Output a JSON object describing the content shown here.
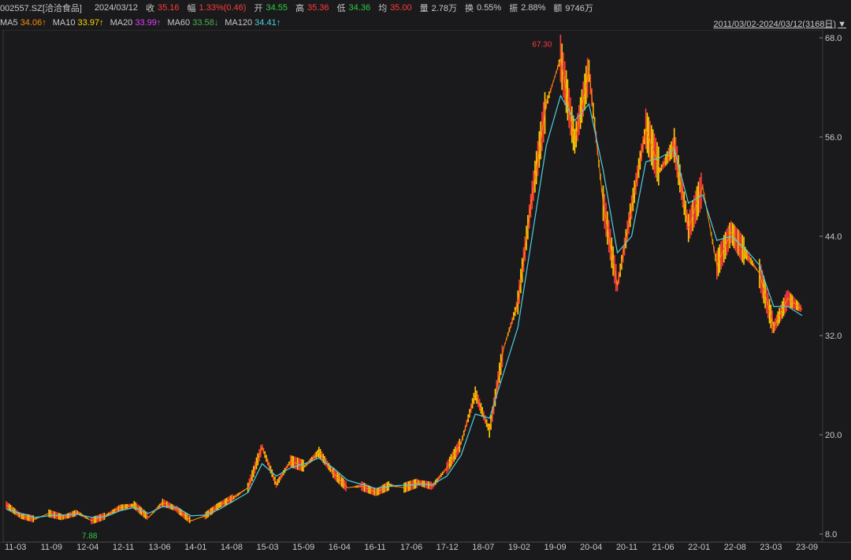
{
  "header": {
    "code": "002557.SZ[洽洽食品]",
    "date": "2024/03/12",
    "close_label": "收",
    "close_value": "35.16",
    "change_label": "幅",
    "change_value": "1.33%(0.46)",
    "open_label": "开",
    "open_value": "34.55",
    "high_label": "高",
    "high_value": "35.36",
    "low_label": "低",
    "low_value": "34.36",
    "avg_label": "均",
    "avg_value": "35.00",
    "vol_label": "量",
    "vol_value": "2.78万",
    "turnover_label": "换",
    "turnover_value": "0.55%",
    "amp_label": "振",
    "amp_value": "2.88%",
    "amount_label": "额",
    "amount_value": "9746万"
  },
  "ma_bar": [
    {
      "label": "MA5",
      "value": "34.06↑",
      "color": "#ff8c00"
    },
    {
      "label": "MA10",
      "value": "33.97↑",
      "color": "#ffd700"
    },
    {
      "label": "MA20",
      "value": "33.99↑",
      "color": "#e040fb"
    },
    {
      "label": "MA60",
      "value": "33.58↓",
      "color": "#4caf50"
    },
    {
      "label": "MA120",
      "value": "34.41↑",
      "color": "#4dd0e1"
    }
  ],
  "range": {
    "text": "2011/03/02-2024/03/12(3168日)",
    "arrow": "▼"
  },
  "colors": {
    "up": "#ff3b3b",
    "down": "#00c0c0",
    "bg": "#1a1a1c"
  },
  "chart_data": {
    "type": "line",
    "title": "",
    "y_ticks": [
      "68.0",
      "56.0",
      "44.0",
      "32.0",
      "20.0",
      "8.0"
    ],
    "ylim": [
      8,
      68
    ],
    "x_ticks": [
      "11-03",
      "11-09",
      "12-04",
      "12-11",
      "13-06",
      "14-01",
      "14-08",
      "15-03",
      "15-09",
      "16-04",
      "16-11",
      "17-06",
      "17-12",
      "18-07",
      "19-02",
      "19-09",
      "20-04",
      "20-11",
      "21-06",
      "22-01",
      "22-08",
      "23-03",
      "23-09"
    ],
    "max_label": "67.30",
    "min_label": "7.88",
    "series": [
      {
        "values": [
          11.5,
          10.2,
          9.8,
          10.5,
          10.0,
          10.6,
          9.6,
          10.2,
          11.2,
          11.5,
          10.0,
          11.8,
          11.0,
          9.6,
          10.2,
          11.5,
          12.4,
          13.6,
          18.5,
          14.0,
          16.8,
          16.2,
          17.9,
          15.4,
          13.6,
          13.8,
          13.0,
          13.9,
          13.6,
          14.2,
          13.8,
          16.0,
          19.0,
          25.0,
          20.5,
          30.5,
          36.0,
          49.0,
          60.0,
          65.5,
          55.5,
          64.0,
          48.0,
          38.0,
          47.5,
          57.0,
          52.0,
          55.0,
          45.0,
          50.0,
          40.5,
          44.5,
          42.0,
          39.5,
          33.0,
          36.5,
          35.16
        ]
      },
      {
        "values": [
          11.0,
          10.5,
          10.0,
          10.2,
          10.3,
          10.4,
          10.0,
          10.1,
          10.8,
          11.2,
          10.5,
          11.3,
          11.2,
          10.2,
          10.3,
          11.0,
          12.0,
          13.0,
          16.5,
          15.0,
          16.0,
          16.5,
          17.2,
          16.0,
          14.5,
          14.0,
          13.5,
          13.8,
          13.9,
          14.0,
          14.0,
          15.0,
          17.5,
          22.5,
          22.0,
          27.5,
          33.0,
          44.0,
          55.0,
          61.0,
          58.0,
          60.0,
          52.0,
          42.0,
          44.0,
          53.0,
          53.5,
          54.5,
          48.0,
          49.0,
          43.5,
          44.0,
          42.5,
          40.5,
          35.5,
          35.5,
          34.41
        ]
      }
    ]
  }
}
